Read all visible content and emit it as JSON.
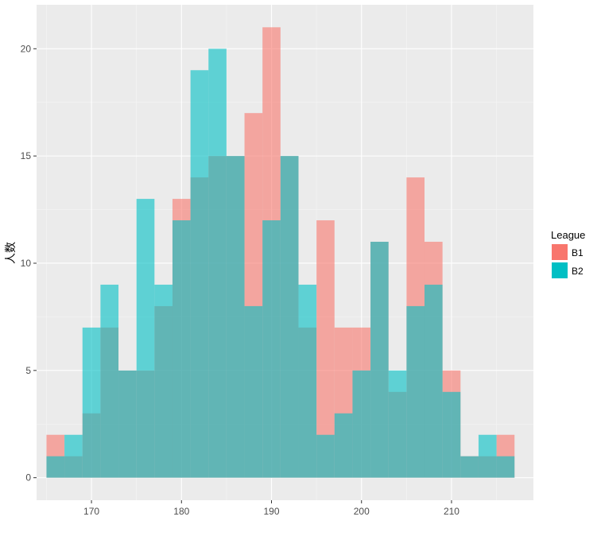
{
  "chart_data": {
    "type": "bar",
    "subtype": "overlapping-histogram",
    "title": "",
    "xlabel": "",
    "ylabel": "人数",
    "x_ticks": [
      170,
      180,
      190,
      200,
      210
    ],
    "y_ticks": [
      0,
      5,
      10,
      15,
      20
    ],
    "xlim": [
      163.9,
      219.1
    ],
    "ylim": [
      -1.05,
      22.05
    ],
    "bin_width": 2,
    "bin_starts": [
      165,
      167,
      169,
      171,
      173,
      175,
      177,
      179,
      181,
      183,
      185,
      187,
      189,
      191,
      193,
      195,
      197,
      199,
      201,
      203,
      205,
      207,
      209,
      211,
      213,
      215
    ],
    "grid": true,
    "legend": {
      "title": "League",
      "position": "right"
    },
    "series": [
      {
        "name": "B1",
        "color": "#F8766D",
        "values": [
          2,
          1,
          3,
          7,
          5,
          5,
          8,
          13,
          14,
          15,
          15,
          17,
          21,
          15,
          7,
          12,
          7,
          7,
          11,
          4,
          14,
          11,
          5,
          1,
          1,
          2
        ]
      },
      {
        "name": "B2",
        "color": "#00BFC4",
        "values": [
          1,
          2,
          7,
          9,
          5,
          13,
          9,
          12,
          19,
          20,
          15,
          8,
          12,
          15,
          9,
          2,
          3,
          5,
          11,
          5,
          8,
          9,
          4,
          1,
          2,
          1
        ]
      }
    ]
  }
}
